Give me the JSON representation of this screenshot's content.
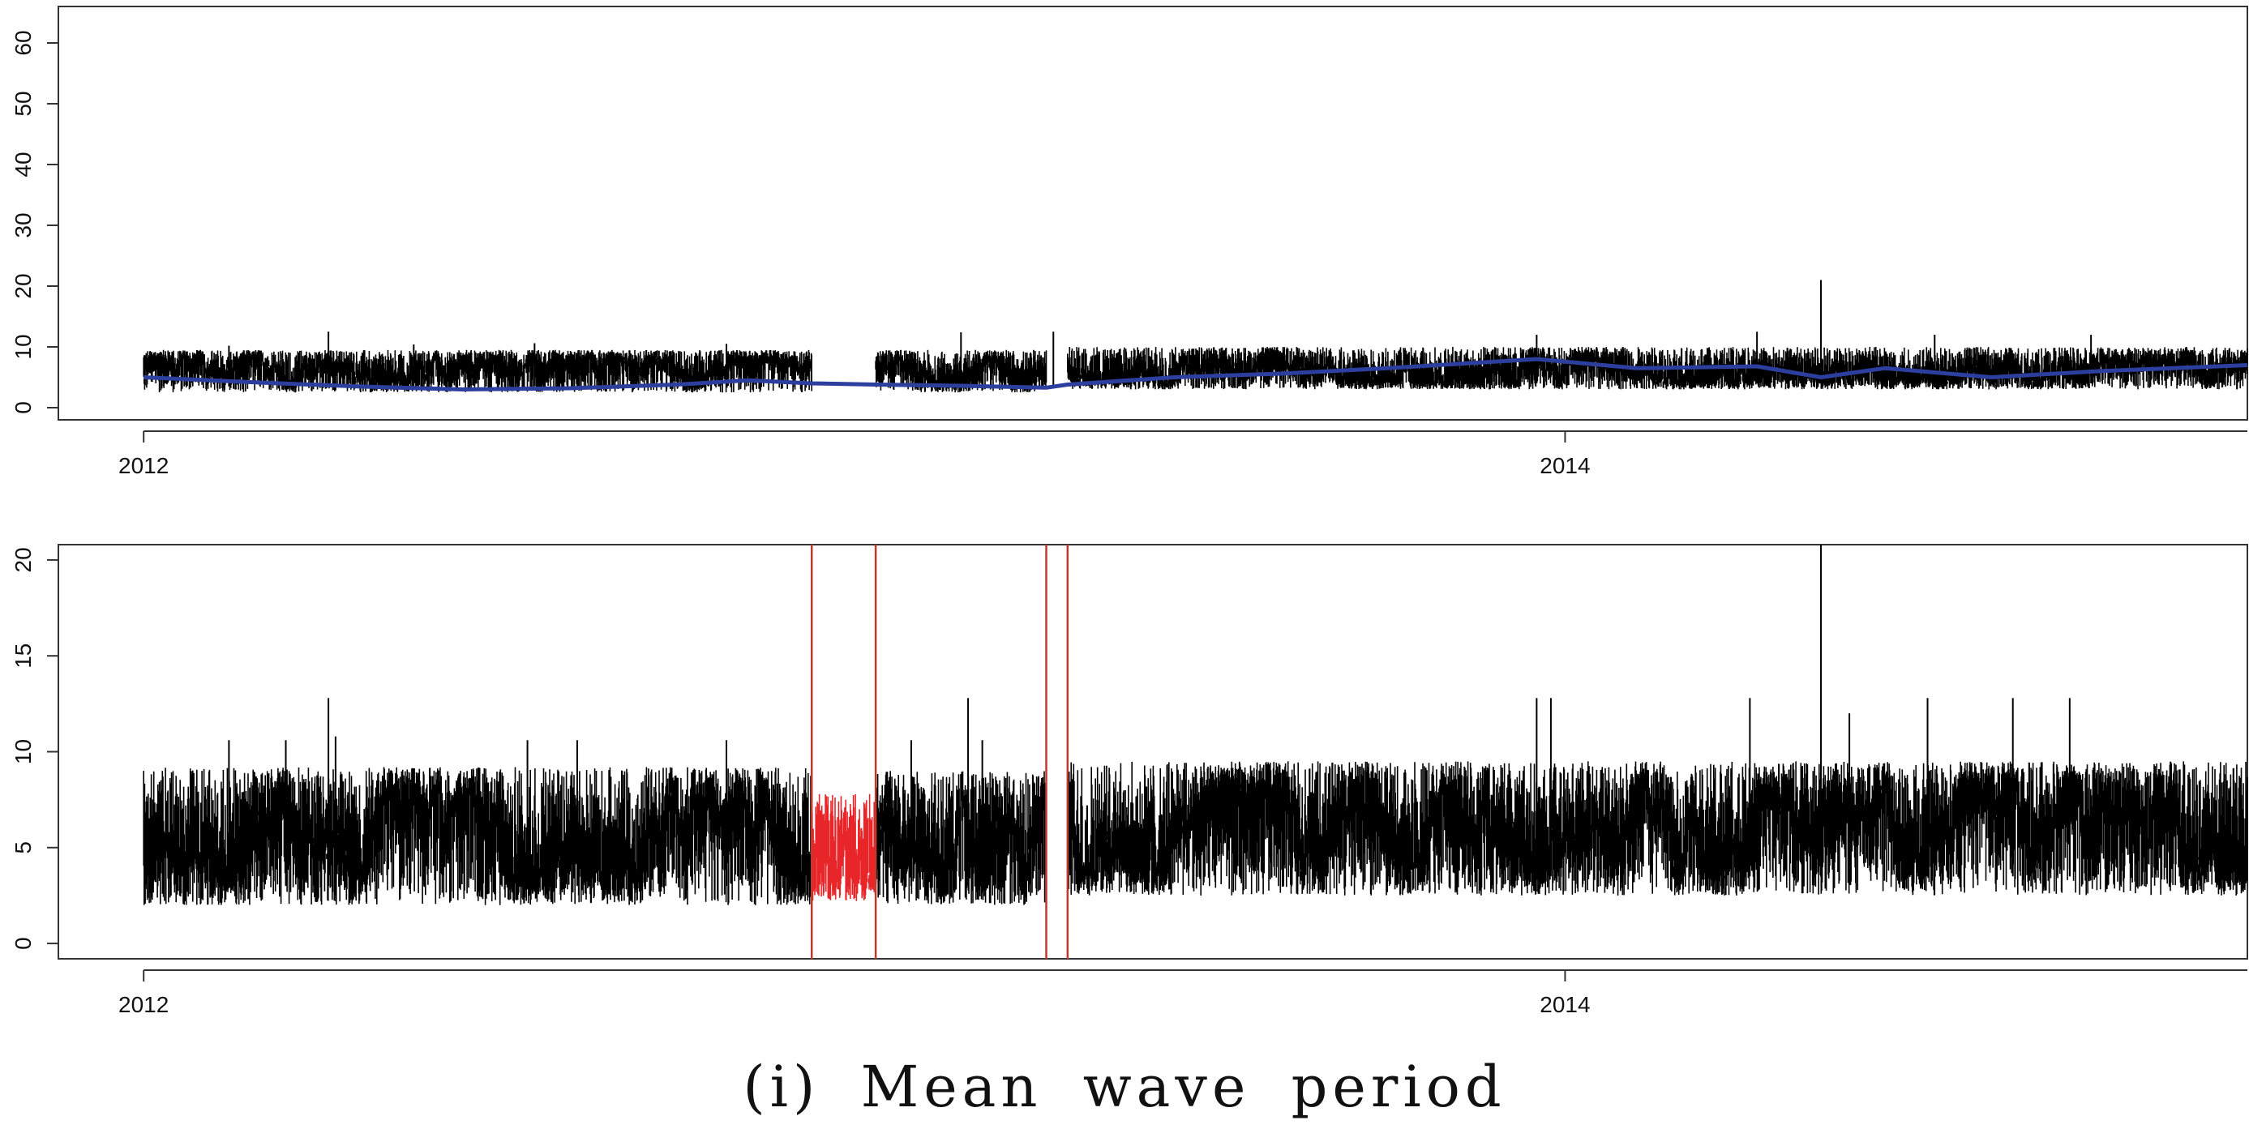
{
  "caption": "(i) Mean wave period",
  "colors": {
    "series": "#000000",
    "smooth": "#2c3e9e",
    "highlight": "#e8262a",
    "marker_lines": "#c0392b",
    "frame": "#333333"
  },
  "chart_data": [
    {
      "type": "line",
      "title": "",
      "xlabel": "",
      "ylabel": "",
      "x_ticks": [
        "2012",
        "2014"
      ],
      "x_tick_years": [
        2012.0,
        2014.0
      ],
      "xlim": [
        2011.88,
        2014.96
      ],
      "ylim": [
        -2,
        66
      ],
      "y_ticks": [
        0,
        10,
        20,
        30,
        40,
        50,
        60
      ],
      "series": [
        {
          "style": "spiky",
          "color_key": "series",
          "segments": [
            {
              "x_start": 2012.0,
              "x_end": 2012.94,
              "min": 2.5,
              "max": 9.5,
              "peaks": [
                [
                  2012.26,
                  12.5
                ],
                [
                  2012.12,
                  10.2
                ],
                [
                  2012.38,
                  10.4
                ],
                [
                  2012.55,
                  10.6
                ],
                [
                  2012.82,
                  10.5
                ]
              ]
            },
            {
              "x_start": 2013.03,
              "x_end": 2013.27,
              "min": 2.5,
              "max": 9.5,
              "peaks": [
                [
                  2013.15,
                  12.4
                ],
                [
                  2013.28,
                  12.5
                ]
              ]
            },
            {
              "x_start": 2013.3,
              "x_end": 2014.96,
              "min": 3.0,
              "max": 10.0,
              "peaks": [
                [
                  2013.96,
                  12.0
                ],
                [
                  2014.27,
                  12.5
                ],
                [
                  2014.36,
                  21.0
                ],
                [
                  2014.52,
                  12.0
                ],
                [
                  2014.74,
                  12.0
                ]
              ]
            }
          ]
        },
        {
          "style": "smooth",
          "color_key": "smooth",
          "points": [
            [
              2012.0,
              5.0
            ],
            [
              2012.15,
              4.2
            ],
            [
              2012.3,
              3.5
            ],
            [
              2012.45,
              3.0
            ],
            [
              2012.6,
              3.2
            ],
            [
              2012.75,
              3.8
            ],
            [
              2012.85,
              4.5
            ],
            [
              2012.94,
              4.0
            ],
            [
              2013.03,
              3.8
            ],
            [
              2013.15,
              3.6
            ],
            [
              2013.27,
              3.3
            ],
            [
              2013.3,
              3.8
            ],
            [
              2013.45,
              5.0
            ],
            [
              2013.6,
              5.6
            ],
            [
              2013.75,
              6.5
            ],
            [
              2013.96,
              8.0
            ],
            [
              2014.1,
              6.5
            ],
            [
              2014.27,
              6.8
            ],
            [
              2014.36,
              5.0
            ],
            [
              2014.45,
              6.5
            ],
            [
              2014.6,
              5.0
            ],
            [
              2014.75,
              6.0
            ],
            [
              2014.96,
              7.0
            ]
          ]
        }
      ]
    },
    {
      "type": "line",
      "title": "",
      "xlabel": "",
      "ylabel": "",
      "x_ticks": [
        "2012",
        "2014"
      ],
      "x_tick_years": [
        2012.0,
        2014.0
      ],
      "xlim": [
        2011.88,
        2014.96
      ],
      "ylim": [
        -0.8,
        20.8
      ],
      "y_ticks": [
        0,
        5,
        10,
        15,
        20
      ],
      "vertical_markers": [
        2012.94,
        2013.03,
        2013.27,
        2013.3
      ],
      "series": [
        {
          "style": "spiky",
          "color_key": "series",
          "segments": [
            {
              "x_start": 2012.0,
              "x_end": 2012.94,
              "min": 2.0,
              "max": 9.2,
              "peaks": [
                [
                  2012.26,
                  12.8
                ],
                [
                  2012.27,
                  10.8
                ],
                [
                  2012.12,
                  10.6
                ],
                [
                  2012.2,
                  10.6
                ],
                [
                  2012.54,
                  10.6
                ],
                [
                  2012.61,
                  10.6
                ],
                [
                  2012.82,
                  10.6
                ]
              ]
            },
            {
              "x_start": 2013.03,
              "x_end": 2013.27,
              "min": 2.0,
              "max": 9.0,
              "peaks": [
                [
                  2013.08,
                  10.6
                ],
                [
                  2013.16,
                  12.8
                ],
                [
                  2013.18,
                  10.6
                ]
              ]
            },
            {
              "x_start": 2013.3,
              "x_end": 2014.96,
              "min": 2.5,
              "max": 9.5,
              "peaks": [
                [
                  2013.96,
                  12.8
                ],
                [
                  2013.98,
                  12.8
                ],
                [
                  2014.26,
                  12.8
                ],
                [
                  2014.36,
                  20.8
                ],
                [
                  2014.51,
                  12.8
                ],
                [
                  2014.63,
                  12.8
                ],
                [
                  2014.71,
                  12.8
                ],
                [
                  2014.4,
                  12.0
                ]
              ]
            }
          ]
        },
        {
          "style": "spiky",
          "color_key": "highlight",
          "segments": [
            {
              "x_start": 2012.94,
              "x_end": 2013.03,
              "min": 2.2,
              "max": 7.8,
              "peaks": []
            }
          ]
        }
      ]
    }
  ]
}
